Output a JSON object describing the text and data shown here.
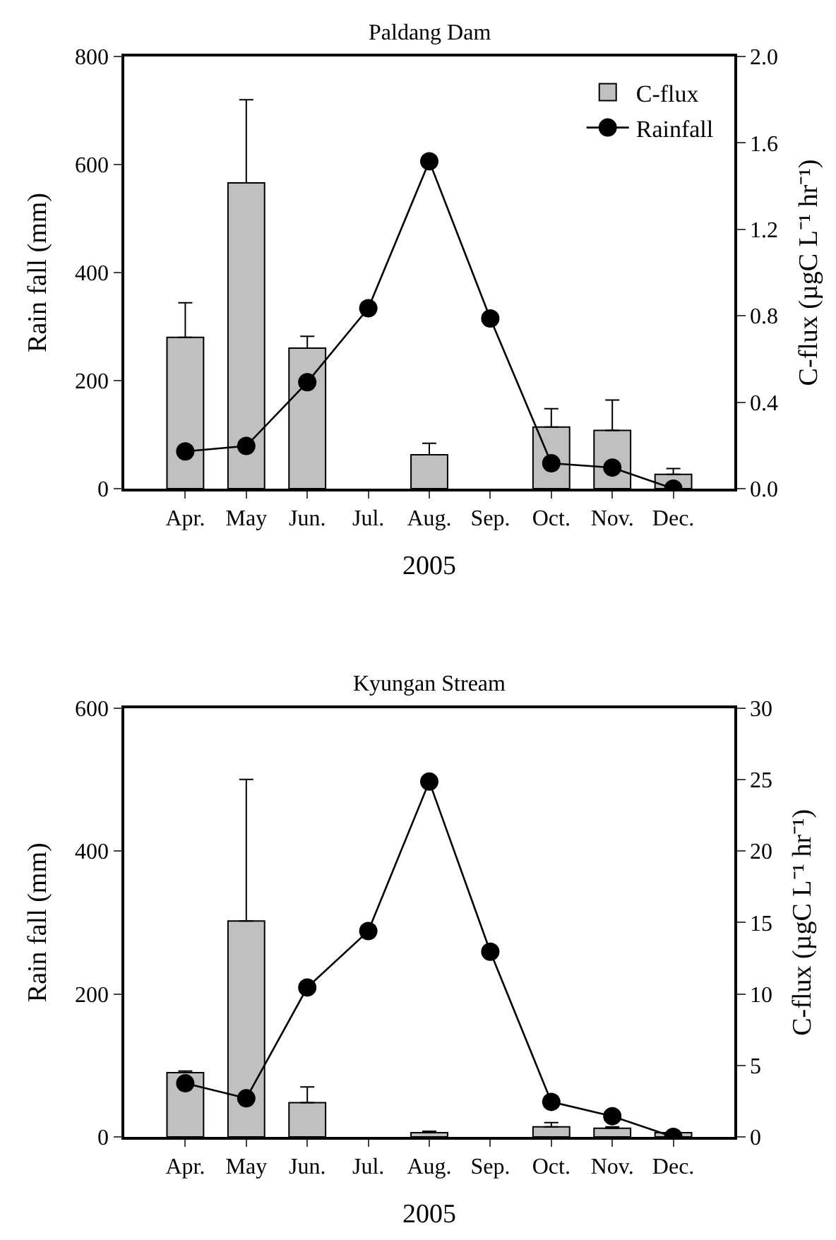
{
  "chart_data": [
    {
      "type": "bar",
      "title": "Paldang Dam",
      "xlabel": "2005",
      "ylabel": "Rain fall (mm)",
      "y2label": "C-flux (µgC L⁻¹ hr⁻¹)",
      "categories": [
        "Apr.",
        "May",
        "Jun.",
        "Jul.",
        "Aug.",
        "Sep.",
        "Oct.",
        "Nov.",
        "Dec."
      ],
      "ylim": [
        0,
        800
      ],
      "yticks": [
        0,
        200,
        400,
        600,
        800
      ],
      "y2lim": [
        0,
        2.0
      ],
      "y2ticks": [
        {
          "value": 0,
          "label": "0.0"
        },
        0.4,
        0.8,
        1.2,
        1.6,
        {
          "value": 2.0,
          "label": "2.0"
        }
      ],
      "legend": "top right",
      "series": [
        {
          "name": "C-flux",
          "axis": "y2",
          "color": "#c0c0c0",
          "values": [
            0.7,
            1.415,
            0.65,
            null,
            0.157,
            null,
            0.285,
            0.27,
            0.066
          ],
          "errors": [
            [
              0.7,
              0.86
            ],
            [
              1.415,
              1.8
            ],
            [
              0.65,
              0.705
            ],
            null,
            [
              0.157,
              0.21
            ],
            null,
            [
              0.285,
              0.37
            ],
            [
              0.27,
              0.41
            ],
            [
              0.066,
              0.093
            ]
          ]
        },
        {
          "name": "Rainfall",
          "type": "line",
          "axis": "y",
          "color": "#000000",
          "marker": "circle",
          "line_style": "solid",
          "values": [
            69,
            79,
            197,
            334,
            606,
            315,
            47,
            39,
            0
          ]
        }
      ]
    },
    {
      "type": "bar",
      "title": "Kyungan Stream",
      "xlabel": "2005",
      "ylabel": "Rain fall (mm)",
      "y2label": "C-flux (µgC L⁻¹ hr⁻¹)",
      "categories": [
        "Apr.",
        "May",
        "Jun.",
        "Jul.",
        "Aug.",
        "Sep.",
        "Oct.",
        "Nov.",
        "Dec."
      ],
      "ylim": [
        0,
        600
      ],
      "yticks": [
        0,
        200,
        400,
        600
      ],
      "y2lim": [
        0,
        30
      ],
      "y2ticks": [
        0,
        5,
        10,
        15,
        20,
        25,
        30
      ],
      "series": [
        {
          "axis": "y2",
          "color": "#c0c0c0",
          "values": [
            4.5,
            15.1,
            2.4,
            null,
            0.3,
            null,
            0.7,
            0.6,
            0.3
          ],
          "errors": [
            [
              4.5,
              4.6
            ],
            [
              15.1,
              25.0
            ],
            [
              2.4,
              3.5
            ],
            null,
            [
              0.3,
              0.4
            ],
            null,
            [
              0.7,
              1.0
            ],
            [
              0.6,
              0.7
            ],
            null
          ]
        },
        {
          "type": "line",
          "axis": "y",
          "color": "#000000",
          "marker": "circle",
          "line_style": "solid",
          "values": [
            75,
            54,
            209,
            288,
            497,
            259,
            49,
            29,
            0
          ]
        }
      ]
    }
  ]
}
